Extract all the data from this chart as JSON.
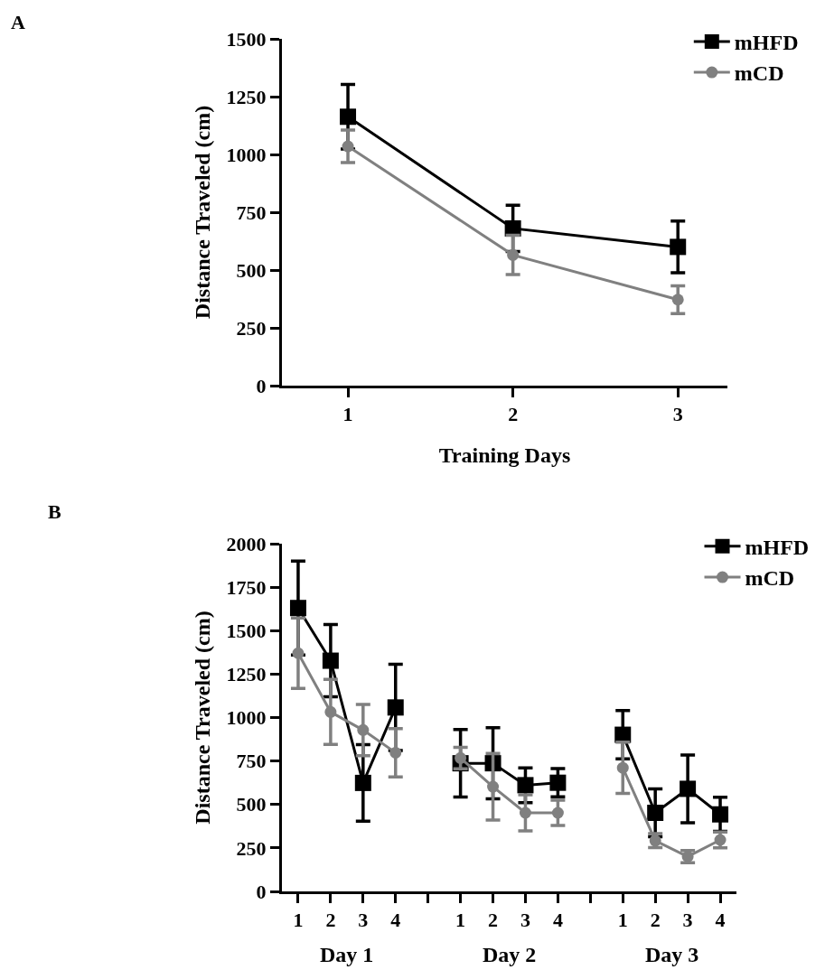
{
  "chart_data": [
    {
      "type": "line",
      "xlabel": "Training Days",
      "ylabel": "Distance Traveled (cm)",
      "annotations": [
        "A"
      ],
      "x": [
        1,
        2,
        3
      ],
      "xlim": [
        0.6,
        3.3
      ],
      "xticks": [
        1,
        2,
        3
      ],
      "ylim": [
        0,
        1500
      ],
      "yticks": [
        0,
        250,
        500,
        750,
        1000,
        1250,
        1500
      ],
      "grid": false,
      "legend": "top right",
      "series": [
        {
          "name": "mHFD",
          "color": "#000000",
          "marker": "square",
          "values": [
            1163,
            680,
            600
          ],
          "errors": [
            140,
            100,
            112
          ]
        },
        {
          "name": "mCD",
          "color": "#808080",
          "marker": "circle",
          "values": [
            1035,
            565,
            372
          ],
          "errors": [
            70,
            85,
            60
          ]
        }
      ]
    },
    {
      "type": "line",
      "ylabel": "Distance Traveled (cm)",
      "annotations": [
        "B",
        "Day 1",
        "Day 2",
        "Day 3"
      ],
      "categories": [
        "1",
        "2",
        "3",
        "4",
        null,
        "1",
        "2",
        "3",
        "4",
        null,
        "1",
        "2",
        "3",
        "4"
      ],
      "ylim": [
        0,
        2000
      ],
      "yticks": [
        0,
        250,
        500,
        750,
        1000,
        1250,
        1500,
        1750,
        2000
      ],
      "grid": false,
      "legend": "top right",
      "series": [
        {
          "name": "mHFD",
          "color": "#000000",
          "marker": "square",
          "values": [
            1630,
            1327,
            624,
            1058,
            null,
            737,
            737,
            611,
            625,
            null,
            901,
            452,
            590,
            443
          ],
          "errors": [
            270,
            208,
            220,
            248,
            null,
            194,
            205,
            100,
            81,
            null,
            139,
            138,
            195,
            98
          ]
        },
        {
          "name": "mCD",
          "color": "#808080",
          "marker": "circle",
          "values": [
            1370,
            1032,
            928,
            798,
            null,
            767,
            602,
            452,
            452,
            null,
            711,
            292,
            200,
            296
          ],
          "errors": [
            203,
            187,
            147,
            139,
            null,
            62,
            191,
            104,
            73,
            null,
            147,
            40,
            35,
            45
          ]
        }
      ]
    }
  ]
}
